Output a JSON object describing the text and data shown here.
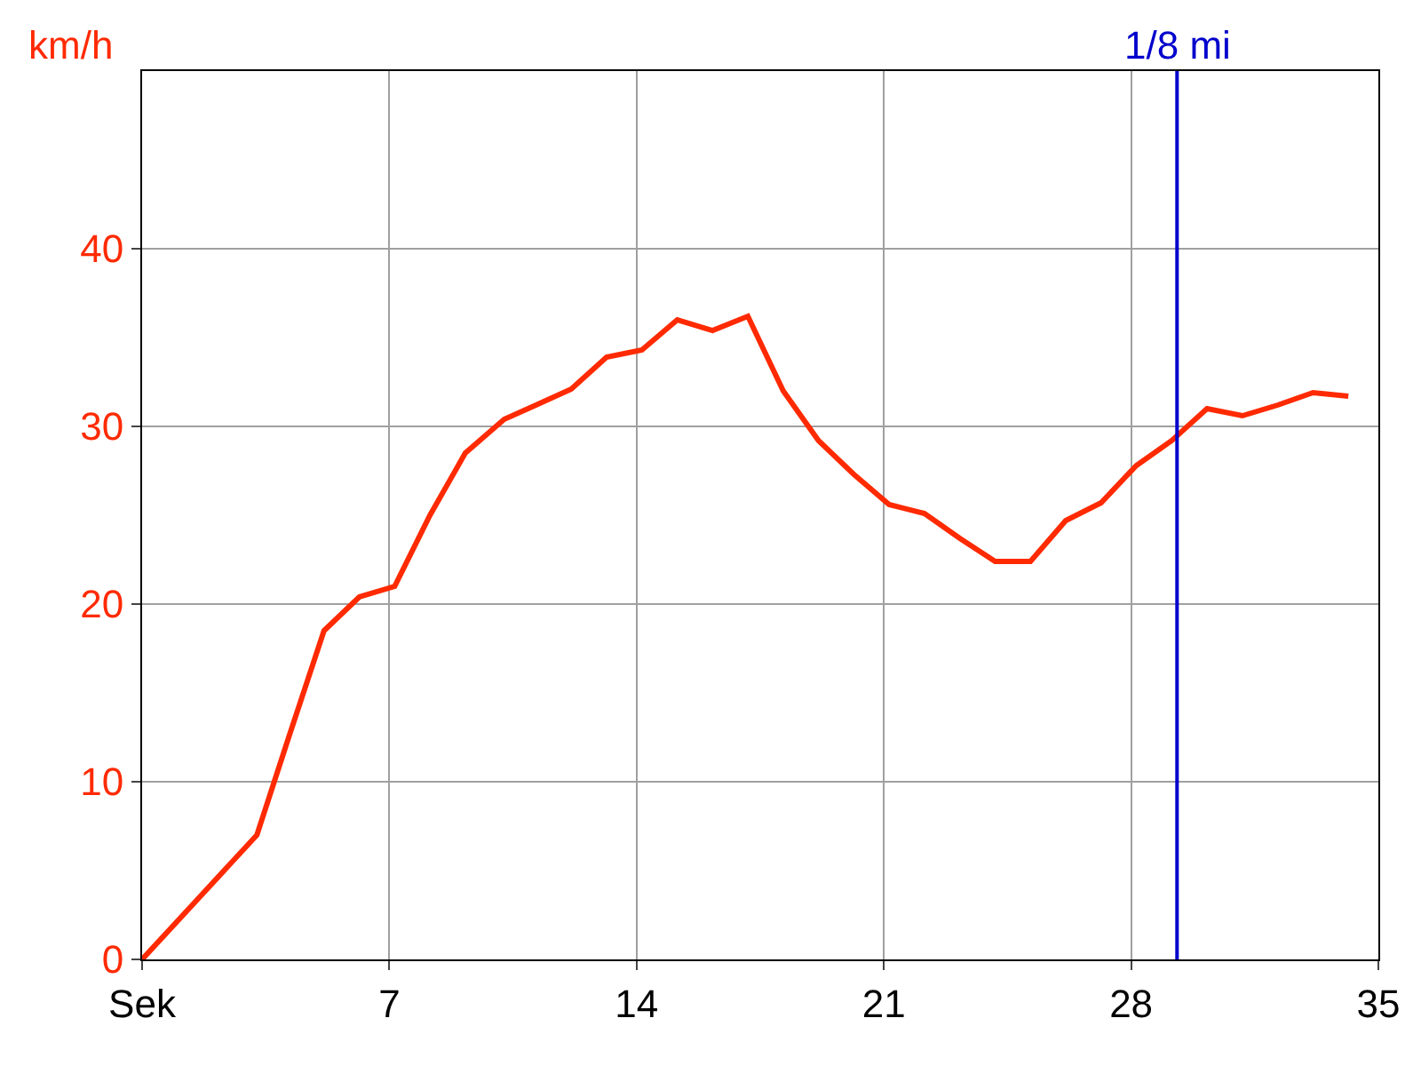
{
  "chart_data": {
    "type": "line",
    "ylabel": "km/h",
    "x": [
      0,
      3.25,
      4.15,
      5.15,
      6.15,
      7.15,
      8.15,
      9.15,
      10.25,
      11.15,
      12.15,
      13.15,
      14.15,
      15.15,
      16.15,
      17.15,
      18.15,
      19.15,
      20.15,
      21.15,
      22.15,
      23.15,
      24.15,
      25.15,
      26.15,
      27.15,
      28.15,
      29.15,
      30.15,
      31.15,
      32.15,
      33.15,
      34.15
    ],
    "series": [
      {
        "color": "#ff2a00",
        "values": [
          0,
          7,
          12.5,
          18.5,
          20.4,
          21,
          25,
          28.5,
          30.4,
          31.2,
          32.1,
          33.9,
          34.3,
          36,
          35.4,
          36.2,
          32,
          29.2,
          27.3,
          25.6,
          25.1,
          23.7,
          22.4,
          22.4,
          24.7,
          25.7,
          27.8,
          29.2,
          31,
          30.6,
          31.2,
          31.9,
          31.7
        ]
      }
    ],
    "xlim": [
      0,
      35
    ],
    "xticks": [
      {
        "value": 0,
        "label": "Sek"
      },
      7,
      14,
      21,
      28,
      35
    ],
    "ylim": [
      0,
      50
    ],
    "yticks": [
      0,
      10,
      20,
      30,
      40
    ],
    "ref_lines": [
      {
        "axis": "x",
        "value": 29.3,
        "label": "1/8 mi",
        "color": "#0000cc"
      }
    ],
    "grid": true,
    "marker": "none",
    "line_style": "solid"
  }
}
